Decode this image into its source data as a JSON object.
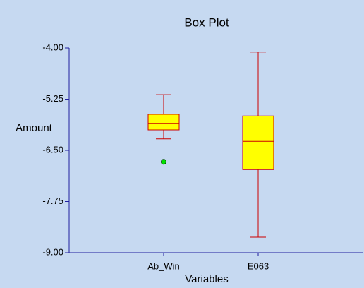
{
  "chart_data": {
    "type": "box",
    "title": "Box Plot",
    "x_label": "Variables",
    "y_label": "Amount",
    "categories": [
      "Ab_Win",
      "E063"
    ],
    "boxes": [
      {
        "whisker_low": -6.22,
        "q1": -6.0,
        "median": -5.84,
        "q3": -5.62,
        "whisker_high": -5.14,
        "outliers": [
          -6.78
        ]
      },
      {
        "whisker_low": -8.62,
        "q1": -6.97,
        "median": -6.28,
        "q3": -5.66,
        "whisker_high": -4.1,
        "outliers": []
      }
    ],
    "box_color": "#ffff00",
    "line_color": "#cc0000",
    "outlier_color": "#00e000",
    "ylim": [
      -9,
      -4
    ],
    "yticks": [
      {
        "value": -9,
        "label": "-9.00"
      },
      -7.75,
      {
        "value": -6.5,
        "label": "-6.50"
      },
      -5.25,
      {
        "value": -4,
        "label": "-4.00"
      }
    ]
  }
}
